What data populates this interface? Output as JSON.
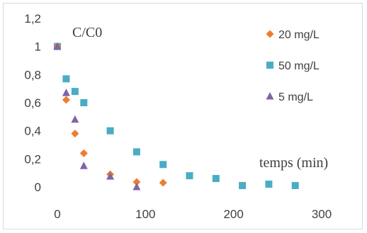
{
  "chart_data": {
    "type": "scatter",
    "ylabel": "C/C0",
    "xlabel": "temps (min)",
    "xlim": [
      0,
      300
    ],
    "ylim": [
      0,
      1.2
    ],
    "xticks": [
      "0",
      "100",
      "200",
      "300"
    ],
    "yticks": [
      "0",
      "0,2",
      "0,4",
      "0,6",
      "0,8",
      "1",
      "1,2"
    ],
    "grid": false,
    "legend_position": "right",
    "series": [
      {
        "name": "20 mg/L",
        "marker": "diamond",
        "color": "#ED7D31",
        "x": [
          0,
          10,
          20,
          30,
          60,
          90,
          120
        ],
        "y": [
          1.0,
          0.62,
          0.38,
          0.24,
          0.09,
          0.035,
          0.03
        ]
      },
      {
        "name": "50 mg/L",
        "marker": "square",
        "color": "#4BACC6",
        "x": [
          0,
          10,
          20,
          30,
          60,
          90,
          120,
          150,
          180,
          210,
          240,
          270
        ],
        "y": [
          1.0,
          0.77,
          0.68,
          0.6,
          0.4,
          0.25,
          0.16,
          0.08,
          0.06,
          0.01,
          0.02,
          0.01
        ]
      },
      {
        "name": "5 mg/L",
        "marker": "triangle",
        "color": "#7F65A6",
        "x": [
          0,
          10,
          20,
          30,
          60,
          90
        ],
        "y": [
          1.0,
          0.67,
          0.48,
          0.15,
          0.075,
          0.0
        ]
      }
    ]
  }
}
